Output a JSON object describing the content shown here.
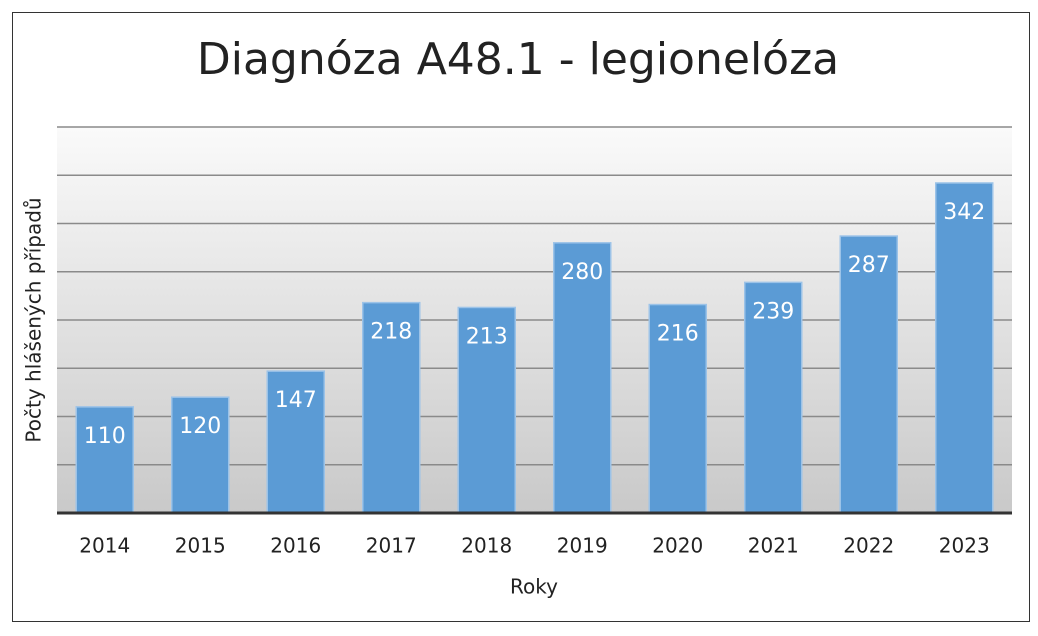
{
  "chart_data": {
    "type": "bar",
    "title": "Diagnóza A48.1 - legionelóza",
    "x_label": "Roky",
    "y_label": "Počty hlášených případů",
    "categories": [
      "2014",
      "2015",
      "2016",
      "2017",
      "2018",
      "2019",
      "2020",
      "2021",
      "2022",
      "2023"
    ],
    "values": [
      110,
      120,
      147,
      218,
      213,
      280,
      216,
      239,
      287,
      342
    ],
    "color": "#5b9bd5",
    "ylim": [
      0,
      400
    ],
    "yticks": [
      0,
      50,
      100,
      150,
      200,
      250,
      300,
      350,
      400
    ],
    "grid": true,
    "ytick_labels": false,
    "data_labels": true
  }
}
